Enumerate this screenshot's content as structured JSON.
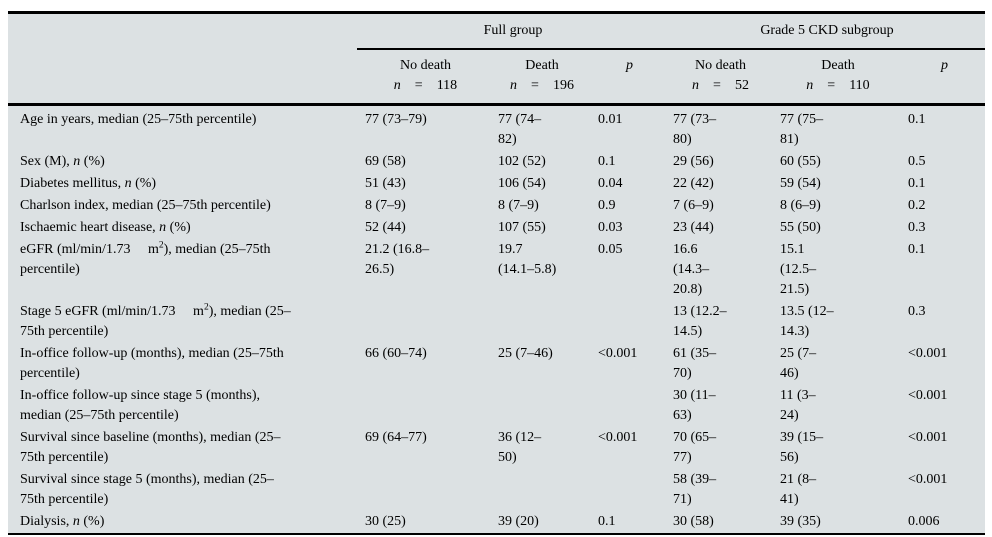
{
  "colors": {
    "table_background": "#dce1e3",
    "rule": "#000000",
    "text": "#000000"
  },
  "table": {
    "groups": [
      {
        "label": "Full group"
      },
      {
        "label": "Grade 5 CKD subgroup"
      }
    ],
    "columns": [
      {
        "header": "No death\n*n*    =    118"
      },
      {
        "header": "Death\n*n*    =    196"
      },
      {
        "header": "*p*"
      },
      {
        "header": "No death\n*n*    =    52"
      },
      {
        "header": "Death\n*n*    =    110"
      },
      {
        "header": "*p*"
      }
    ],
    "rows": [
      {
        "label": "Age in years, median (25–75th percentile)",
        "cells": [
          "77 (73–79)",
          "77 (74–\n82)",
          "0.01",
          "77 (73–\n80)",
          "77 (75–\n81)",
          "0.1"
        ]
      },
      {
        "label": "Sex (M), *n* (%)",
        "cells": [
          "69 (58)",
          "102 (52)",
          "0.1",
          "29 (56)",
          "60 (55)",
          "0.5"
        ]
      },
      {
        "label": "Diabetes mellitus, *n* (%)",
        "cells": [
          "51 (43)",
          "106 (54)",
          "0.04",
          "22 (42)",
          "59 (54)",
          "0.1"
        ]
      },
      {
        "label": "Charlson index, median (25–75th percentile)",
        "cells": [
          "8 (7–9)",
          "8 (7–9)",
          "0.9",
          "7 (6–9)",
          "8 (6–9)",
          "0.2"
        ]
      },
      {
        "label": "Ischaemic heart disease, *n* (%)",
        "cells": [
          "52 (44)",
          "107 (55)",
          "0.03",
          "23 (44)",
          "55 (50)",
          "0.3"
        ]
      },
      {
        "label": "eGFR (ml/min/1.73     m^2^), median (25–75th\npercentile)",
        "cells": [
          "21.2 (16.8–\n26.5)",
          "19.7\n(14.1–5.8)",
          "0.05",
          "16.6\n(14.3–\n20.8)",
          "15.1\n(12.5–\n21.5)",
          "0.1"
        ]
      },
      {
        "label": "Stage 5 eGFR (ml/min/1.73     m^2^), median (25–\n75th percentile)",
        "cells": [
          "",
          "",
          "",
          "13 (12.2–\n14.5)",
          "13.5 (12–\n14.3)",
          "0.3"
        ]
      },
      {
        "label": "In-office follow-up (months), median (25–75th\npercentile)",
        "cells": [
          "66 (60–74)",
          "25 (7–46)",
          "<0.001",
          "61 (35–\n70)",
          "25 (7–\n46)",
          "<0.001"
        ]
      },
      {
        "label": "In-office follow-up since stage 5 (months),\nmedian (25–75th percentile)",
        "cells": [
          "",
          "",
          "",
          "30 (11–\n63)",
          "11 (3–\n24)",
          "<0.001"
        ]
      },
      {
        "label": "Survival since baseline (months), median (25–\n75th percentile)",
        "cells": [
          "69 (64–77)",
          "36 (12–\n50)",
          "<0.001",
          "70 (65–\n77)",
          "39 (15–\n56)",
          "<0.001"
        ]
      },
      {
        "label": "Survival since stage 5 (months), median (25–\n75th percentile)",
        "cells": [
          "",
          "",
          "",
          "58 (39–\n71)",
          "21 (8–\n41)",
          "<0.001"
        ]
      },
      {
        "label": "Dialysis, *n* (%)",
        "cells": [
          "30 (25)",
          "39 (20)",
          "0.1",
          "30 (58)",
          "39 (35)",
          "0.006"
        ]
      }
    ]
  }
}
